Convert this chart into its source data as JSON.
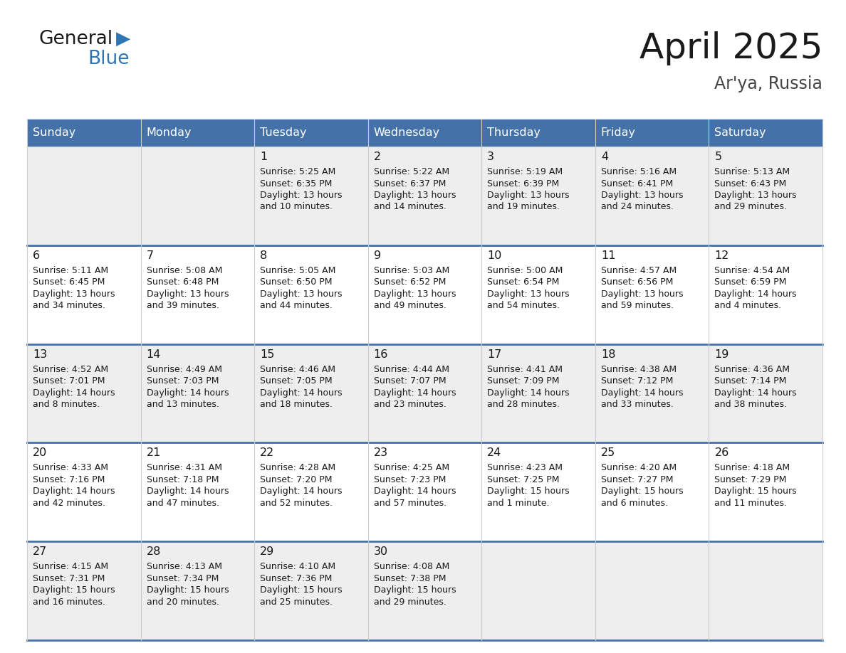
{
  "title": "April 2025",
  "subtitle": "Ar'ya, Russia",
  "header_color": "#4472A8",
  "header_text_color": "#FFFFFF",
  "cell_bg_row0": "#EEEEEE",
  "cell_bg_row1": "#FFFFFF",
  "cell_bg_row2": "#EEEEEE",
  "cell_bg_row3": "#FFFFFF",
  "cell_bg_row4": "#EEEEEE",
  "separator_color": "#4472A8",
  "grid_color": "#CCCCCC",
  "text_color": "#1a1a1a",
  "day_headers": [
    "Sunday",
    "Monday",
    "Tuesday",
    "Wednesday",
    "Thursday",
    "Friday",
    "Saturday"
  ],
  "days": [
    {
      "day": 1,
      "col": 2,
      "row": 0,
      "sunrise": "5:25 AM",
      "sunset": "6:35 PM",
      "daylight_line1": "Daylight: 13 hours",
      "daylight_line2": "and 10 minutes."
    },
    {
      "day": 2,
      "col": 3,
      "row": 0,
      "sunrise": "5:22 AM",
      "sunset": "6:37 PM",
      "daylight_line1": "Daylight: 13 hours",
      "daylight_line2": "and 14 minutes."
    },
    {
      "day": 3,
      "col": 4,
      "row": 0,
      "sunrise": "5:19 AM",
      "sunset": "6:39 PM",
      "daylight_line1": "Daylight: 13 hours",
      "daylight_line2": "and 19 minutes."
    },
    {
      "day": 4,
      "col": 5,
      "row": 0,
      "sunrise": "5:16 AM",
      "sunset": "6:41 PM",
      "daylight_line1": "Daylight: 13 hours",
      "daylight_line2": "and 24 minutes."
    },
    {
      "day": 5,
      "col": 6,
      "row": 0,
      "sunrise": "5:13 AM",
      "sunset": "6:43 PM",
      "daylight_line1": "Daylight: 13 hours",
      "daylight_line2": "and 29 minutes."
    },
    {
      "day": 6,
      "col": 0,
      "row": 1,
      "sunrise": "5:11 AM",
      "sunset": "6:45 PM",
      "daylight_line1": "Daylight: 13 hours",
      "daylight_line2": "and 34 minutes."
    },
    {
      "day": 7,
      "col": 1,
      "row": 1,
      "sunrise": "5:08 AM",
      "sunset": "6:48 PM",
      "daylight_line1": "Daylight: 13 hours",
      "daylight_line2": "and 39 minutes."
    },
    {
      "day": 8,
      "col": 2,
      "row": 1,
      "sunrise": "5:05 AM",
      "sunset": "6:50 PM",
      "daylight_line1": "Daylight: 13 hours",
      "daylight_line2": "and 44 minutes."
    },
    {
      "day": 9,
      "col": 3,
      "row": 1,
      "sunrise": "5:03 AM",
      "sunset": "6:52 PM",
      "daylight_line1": "Daylight: 13 hours",
      "daylight_line2": "and 49 minutes."
    },
    {
      "day": 10,
      "col": 4,
      "row": 1,
      "sunrise": "5:00 AM",
      "sunset": "6:54 PM",
      "daylight_line1": "Daylight: 13 hours",
      "daylight_line2": "and 54 minutes."
    },
    {
      "day": 11,
      "col": 5,
      "row": 1,
      "sunrise": "4:57 AM",
      "sunset": "6:56 PM",
      "daylight_line1": "Daylight: 13 hours",
      "daylight_line2": "and 59 minutes."
    },
    {
      "day": 12,
      "col": 6,
      "row": 1,
      "sunrise": "4:54 AM",
      "sunset": "6:59 PM",
      "daylight_line1": "Daylight: 14 hours",
      "daylight_line2": "and 4 minutes."
    },
    {
      "day": 13,
      "col": 0,
      "row": 2,
      "sunrise": "4:52 AM",
      "sunset": "7:01 PM",
      "daylight_line1": "Daylight: 14 hours",
      "daylight_line2": "and 8 minutes."
    },
    {
      "day": 14,
      "col": 1,
      "row": 2,
      "sunrise": "4:49 AM",
      "sunset": "7:03 PM",
      "daylight_line1": "Daylight: 14 hours",
      "daylight_line2": "and 13 minutes."
    },
    {
      "day": 15,
      "col": 2,
      "row": 2,
      "sunrise": "4:46 AM",
      "sunset": "7:05 PM",
      "daylight_line1": "Daylight: 14 hours",
      "daylight_line2": "and 18 minutes."
    },
    {
      "day": 16,
      "col": 3,
      "row": 2,
      "sunrise": "4:44 AM",
      "sunset": "7:07 PM",
      "daylight_line1": "Daylight: 14 hours",
      "daylight_line2": "and 23 minutes."
    },
    {
      "day": 17,
      "col": 4,
      "row": 2,
      "sunrise": "4:41 AM",
      "sunset": "7:09 PM",
      "daylight_line1": "Daylight: 14 hours",
      "daylight_line2": "and 28 minutes."
    },
    {
      "day": 18,
      "col": 5,
      "row": 2,
      "sunrise": "4:38 AM",
      "sunset": "7:12 PM",
      "daylight_line1": "Daylight: 14 hours",
      "daylight_line2": "and 33 minutes."
    },
    {
      "day": 19,
      "col": 6,
      "row": 2,
      "sunrise": "4:36 AM",
      "sunset": "7:14 PM",
      "daylight_line1": "Daylight: 14 hours",
      "daylight_line2": "and 38 minutes."
    },
    {
      "day": 20,
      "col": 0,
      "row": 3,
      "sunrise": "4:33 AM",
      "sunset": "7:16 PM",
      "daylight_line1": "Daylight: 14 hours",
      "daylight_line2": "and 42 minutes."
    },
    {
      "day": 21,
      "col": 1,
      "row": 3,
      "sunrise": "4:31 AM",
      "sunset": "7:18 PM",
      "daylight_line1": "Daylight: 14 hours",
      "daylight_line2": "and 47 minutes."
    },
    {
      "day": 22,
      "col": 2,
      "row": 3,
      "sunrise": "4:28 AM",
      "sunset": "7:20 PM",
      "daylight_line1": "Daylight: 14 hours",
      "daylight_line2": "and 52 minutes."
    },
    {
      "day": 23,
      "col": 3,
      "row": 3,
      "sunrise": "4:25 AM",
      "sunset": "7:23 PM",
      "daylight_line1": "Daylight: 14 hours",
      "daylight_line2": "and 57 minutes."
    },
    {
      "day": 24,
      "col": 4,
      "row": 3,
      "sunrise": "4:23 AM",
      "sunset": "7:25 PM",
      "daylight_line1": "Daylight: 15 hours",
      "daylight_line2": "and 1 minute."
    },
    {
      "day": 25,
      "col": 5,
      "row": 3,
      "sunrise": "4:20 AM",
      "sunset": "7:27 PM",
      "daylight_line1": "Daylight: 15 hours",
      "daylight_line2": "and 6 minutes."
    },
    {
      "day": 26,
      "col": 6,
      "row": 3,
      "sunrise": "4:18 AM",
      "sunset": "7:29 PM",
      "daylight_line1": "Daylight: 15 hours",
      "daylight_line2": "and 11 minutes."
    },
    {
      "day": 27,
      "col": 0,
      "row": 4,
      "sunrise": "4:15 AM",
      "sunset": "7:31 PM",
      "daylight_line1": "Daylight: 15 hours",
      "daylight_line2": "and 16 minutes."
    },
    {
      "day": 28,
      "col": 1,
      "row": 4,
      "sunrise": "4:13 AM",
      "sunset": "7:34 PM",
      "daylight_line1": "Daylight: 15 hours",
      "daylight_line2": "and 20 minutes."
    },
    {
      "day": 29,
      "col": 2,
      "row": 4,
      "sunrise": "4:10 AM",
      "sunset": "7:36 PM",
      "daylight_line1": "Daylight: 15 hours",
      "daylight_line2": "and 25 minutes."
    },
    {
      "day": 30,
      "col": 3,
      "row": 4,
      "sunrise": "4:08 AM",
      "sunset": "7:38 PM",
      "daylight_line1": "Daylight: 15 hours",
      "daylight_line2": "and 29 minutes."
    }
  ]
}
